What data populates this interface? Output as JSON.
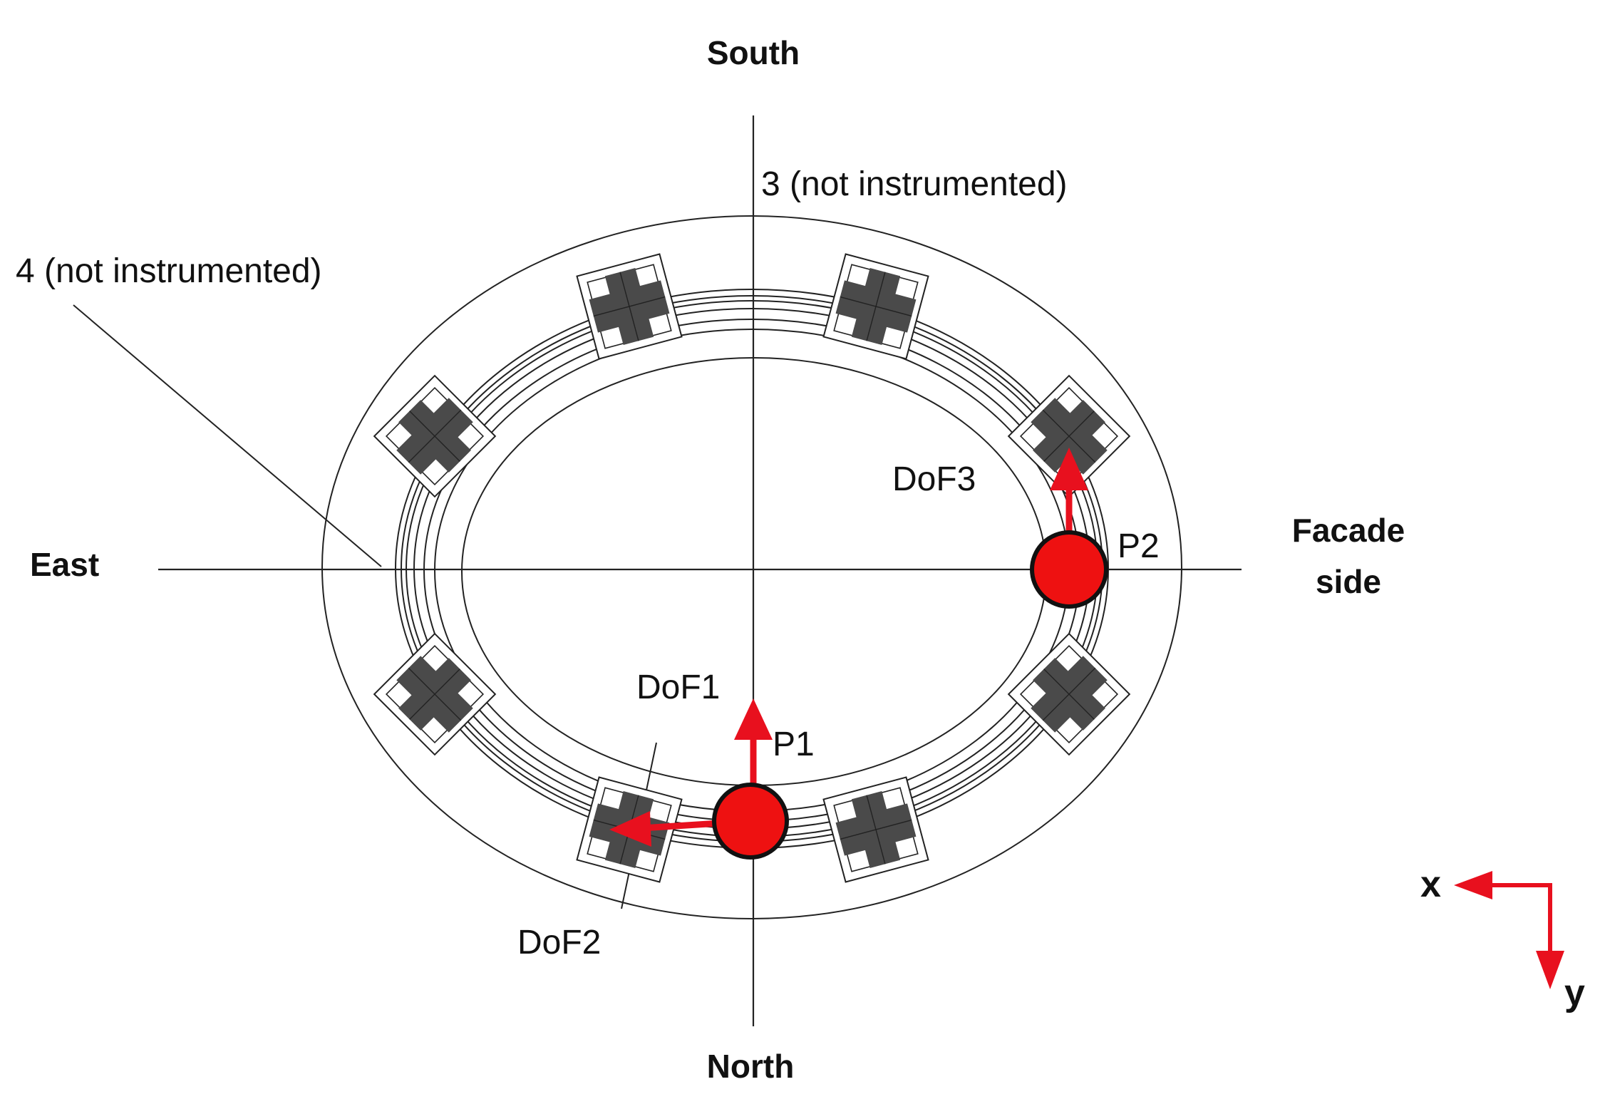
{
  "directions": {
    "south": "South",
    "north": "North",
    "east": "East",
    "facade_line1": "Facade",
    "facade_line2": "side"
  },
  "annotations": {
    "not_instrumented_3": "3 (not instrumented)",
    "not_instrumented_4": "4 (not instrumented)",
    "dof1": "DoF1",
    "dof2": "DoF2",
    "dof3": "DoF3",
    "p1": "P1",
    "p2": "P2"
  },
  "axes_legend": {
    "x_label": "x",
    "y_label": "y"
  },
  "colors": {
    "line": "#222222",
    "block": "#4a4a4a",
    "sensor_red": "#ee1111",
    "arrow_red": "#e8101e"
  }
}
